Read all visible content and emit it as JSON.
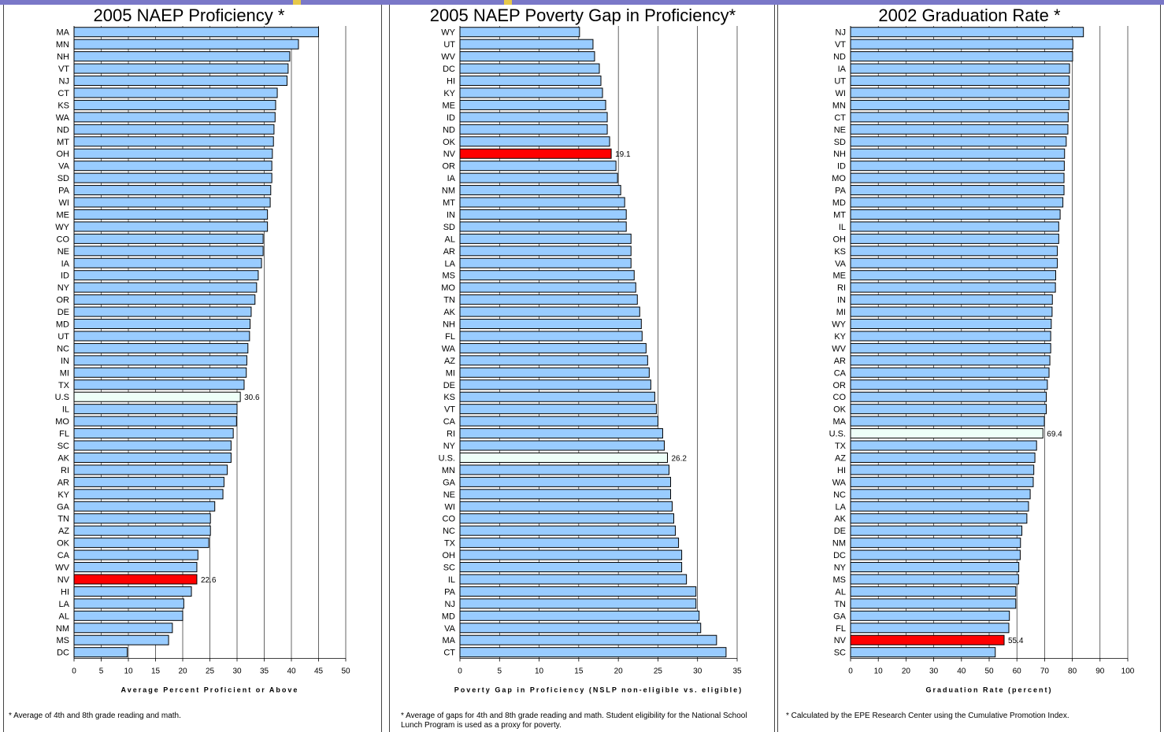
{
  "chart_data": [
    {
      "type": "bar",
      "orientation": "horizontal",
      "title": "2005 NAEP Proficiency *",
      "xlabel": "Average Percent Proficient or Above",
      "xlim": [
        0,
        50
      ],
      "xticks": [
        0,
        5,
        10,
        15,
        20,
        25,
        30,
        35,
        40,
        45,
        50
      ],
      "grid": true,
      "footnote": "* Average of 4th and 8th grade reading and math.",
      "categories": [
        "MA",
        "MN",
        "NH",
        "VT",
        "NJ",
        "CT",
        "KS",
        "WA",
        "ND",
        "MT",
        "OH",
        "VA",
        "SD",
        "PA",
        "WI",
        "ME",
        "WY",
        "CO",
        "NE",
        "IA",
        "ID",
        "NY",
        "OR",
        "DE",
        "MD",
        "UT",
        "NC",
        "IN",
        "MI",
        "TX",
        "U.S",
        "IL",
        "MO",
        "FL",
        "SC",
        "AK",
        "RI",
        "AR",
        "KY",
        "GA",
        "TN",
        "AZ",
        "OK",
        "CA",
        "WV",
        "NV",
        "HI",
        "LA",
        "AL",
        "NM",
        "MS",
        "DC"
      ],
      "values": [
        45,
        41.3,
        39.7,
        39.4,
        39.2,
        37.4,
        37.1,
        37.0,
        36.8,
        36.7,
        36.5,
        36.4,
        36.4,
        36.2,
        36.1,
        35.6,
        35.6,
        34.8,
        34.8,
        34.5,
        33.9,
        33.6,
        33.3,
        32.6,
        32.4,
        32.3,
        32.0,
        31.8,
        31.7,
        31.3,
        30.6,
        30.0,
        29.9,
        29.3,
        28.9,
        28.9,
        28.2,
        27.6,
        27.4,
        25.9,
        25.1,
        25.1,
        24.8,
        22.8,
        22.6,
        22.6,
        21.6,
        20.2,
        20.0,
        18.1,
        17.4,
        9.8
      ],
      "highlights": [
        {
          "category": "U.S",
          "color": "#eefff8",
          "label": "30.6"
        },
        {
          "category": "NV",
          "color": "#ff0000",
          "label": "22.6"
        }
      ],
      "bar_color": "#99ccff"
    },
    {
      "type": "bar",
      "orientation": "horizontal",
      "title": "2005 NAEP Poverty Gap in Proficiency*",
      "xlabel": "Poverty Gap in Proficiency (NSLP non-eligible vs. eligible)",
      "xlim": [
        0,
        35
      ],
      "xticks": [
        0,
        5,
        10,
        15,
        20,
        25,
        30,
        35
      ],
      "grid": true,
      "footnote": "* Average of gaps for 4th and 8th grade reading and math.  Student eligibility for the National School Lunch Program is used as a proxy for poverty.",
      "categories": [
        "WY",
        "UT",
        "WV",
        "DC",
        "HI",
        "KY",
        "ME",
        "ID",
        "ND",
        "OK",
        "NV",
        "OR",
        "IA",
        "NM",
        "MT",
        "IN",
        "SD",
        "AL",
        "AR",
        "LA",
        "MS",
        "MO",
        "TN",
        "AK",
        "NH",
        "FL",
        "WA",
        "AZ",
        "MI",
        "DE",
        "KS",
        "VT",
        "CA",
        "RI",
        "NY",
        "U.S.",
        "MN",
        "GA",
        "NE",
        "WI",
        "CO",
        "NC",
        "TX",
        "OH",
        "SC",
        "IL",
        "PA",
        "NJ",
        "MD",
        "VA",
        "MA",
        "CT"
      ],
      "values": [
        15.1,
        16.8,
        17.0,
        17.6,
        17.8,
        18.0,
        18.4,
        18.6,
        18.6,
        18.9,
        19.1,
        19.7,
        19.9,
        20.3,
        20.8,
        21.0,
        21.0,
        21.6,
        21.6,
        21.6,
        22.0,
        22.2,
        22.4,
        22.7,
        22.9,
        23.0,
        23.5,
        23.7,
        23.9,
        24.1,
        24.6,
        24.8,
        25.0,
        25.6,
        25.8,
        26.2,
        26.4,
        26.6,
        26.6,
        26.8,
        27.0,
        27.2,
        27.6,
        28.0,
        28.0,
        28.6,
        29.8,
        29.8,
        30.2,
        30.4,
        32.4,
        33.6
      ],
      "highlights": [
        {
          "category": "NV",
          "color": "#ff0000",
          "label": "19.1"
        },
        {
          "category": "U.S.",
          "color": "#eefff8",
          "label": "26.2"
        }
      ],
      "bar_color": "#99ccff"
    },
    {
      "type": "bar",
      "orientation": "horizontal",
      "title": "2002 Graduation Rate *",
      "xlabel": "Graduation Rate (percent)",
      "xlim": [
        0,
        100
      ],
      "xticks": [
        0,
        10,
        20,
        30,
        40,
        50,
        60,
        70,
        80,
        90,
        100
      ],
      "grid": true,
      "footnote": "* Calculated by the EPE Research Center using the Cumulative Promotion Index.",
      "categories": [
        "NJ",
        "VT",
        "ND",
        "IA",
        "UT",
        "WI",
        "MN",
        "CT",
        "NE",
        "SD",
        "NH",
        "ID",
        "MO",
        "PA",
        "MD",
        "MT",
        "IL",
        "OH",
        "KS",
        "VA",
        "ME",
        "RI",
        "IN",
        "MI",
        "WY",
        "KY",
        "WV",
        "AR",
        "CA",
        "OR",
        "CO",
        "OK",
        "MA",
        "U.S.",
        "TX",
        "AZ",
        "HI",
        "WA",
        "NC",
        "LA",
        "AK",
        "DE",
        "NM",
        "DC",
        "NY",
        "MS",
        "AL",
        "TN",
        "GA",
        "FL",
        "NV",
        "SC"
      ],
      "values": [
        84,
        80.2,
        80.1,
        79.0,
        78.9,
        78.9,
        78.8,
        78.5,
        78.4,
        77.8,
        77.2,
        77.1,
        77.0,
        77.0,
        76.6,
        75.6,
        75.1,
        75.1,
        74.6,
        74.6,
        74.0,
        73.9,
        72.8,
        72.7,
        72.4,
        72.2,
        72.2,
        71.9,
        71.6,
        71.0,
        70.6,
        70.6,
        69.9,
        69.4,
        67.1,
        66.5,
        66.1,
        65.9,
        64.8,
        64.2,
        63.6,
        61.8,
        61.3,
        61.2,
        60.7,
        60.6,
        59.6,
        59.6,
        57.3,
        57.1,
        55.4,
        52.2
      ],
      "highlights": [
        {
          "category": "U.S.",
          "color": "#eefff8",
          "label": "69.4"
        },
        {
          "category": "NV",
          "color": "#ff0000",
          "label": "55.4"
        }
      ],
      "bar_color": "#99ccff"
    }
  ]
}
